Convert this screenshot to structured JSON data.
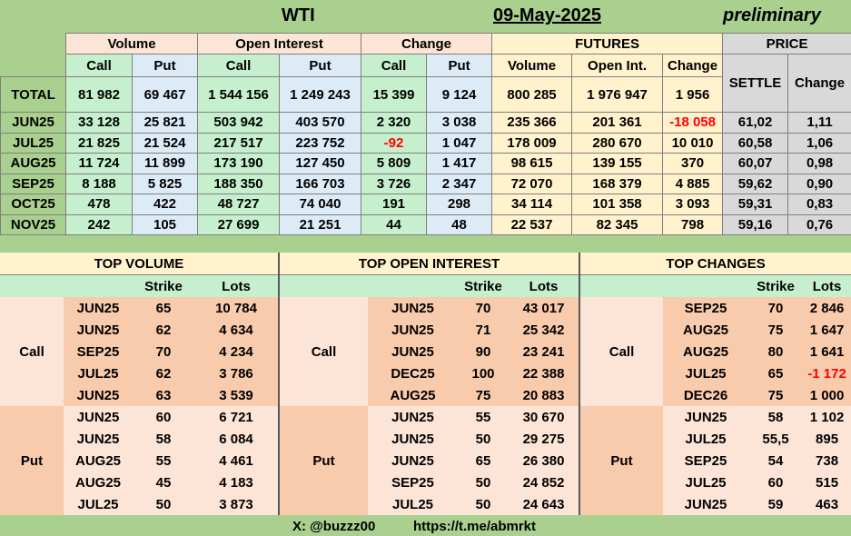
{
  "title": "WTI",
  "date": "09-May-2025",
  "status": "preliminary",
  "groups": {
    "volume": "Volume",
    "open_interest": "Open Interest",
    "change": "Change",
    "futures": "FUTURES",
    "price": "PRICE"
  },
  "subheaders": {
    "call": "Call",
    "put": "Put",
    "fut_volume": "Volume",
    "fut_open_int": "Open Int.",
    "fut_change": "Change",
    "settle": "SETTLE",
    "price_change": "Change"
  },
  "total": {
    "label": "TOTAL",
    "values": [
      "81 982",
      "69 467",
      "1 544 156",
      "1 249 243",
      "15 399",
      "9 124",
      "800 285",
      "1 976 947",
      "1 956"
    ]
  },
  "rows": [
    {
      "month": "JUN25",
      "values": [
        "33 128",
        "25 821",
        "503 942",
        "403 570",
        "2 320",
        "3 038",
        "235 366",
        "201 361",
        "-18 058",
        "61,02",
        "1,11"
      ]
    },
    {
      "month": "JUL25",
      "values": [
        "21 825",
        "21 524",
        "217 517",
        "223 752",
        "-92",
        "1 047",
        "178 009",
        "280 670",
        "10 010",
        "60,58",
        "1,06"
      ]
    },
    {
      "month": "AUG25",
      "values": [
        "11 724",
        "11 899",
        "173 190",
        "127 450",
        "5 809",
        "1 417",
        "98 615",
        "139 155",
        "370",
        "60,07",
        "0,98"
      ]
    },
    {
      "month": "SEP25",
      "values": [
        "8 188",
        "5 825",
        "188 350",
        "166 703",
        "3 726",
        "2 347",
        "72 070",
        "168 379",
        "4 885",
        "59,62",
        "0,90"
      ]
    },
    {
      "month": "OCT25",
      "values": [
        "478",
        "422",
        "48 727",
        "74 040",
        "191",
        "298",
        "34 114",
        "101 358",
        "3 093",
        "59,31",
        "0,83"
      ]
    },
    {
      "month": "NOV25",
      "values": [
        "242",
        "105",
        "27 699",
        "21 251",
        "44",
        "48",
        "22 537",
        "82 345",
        "798",
        "59,16",
        "0,76"
      ]
    }
  ],
  "bottom": {
    "sections": [
      "TOP VOLUME",
      "TOP OPEN INTEREST",
      "TOP CHANGES"
    ],
    "strike_label": "Strike",
    "lots_label": "Lots",
    "call_label": "Call",
    "put_label": "Put",
    "rows": [
      [
        [
          "JUN25",
          "65",
          "10 784"
        ],
        [
          "JUN25",
          "70",
          "43 017"
        ],
        [
          "SEP25",
          "70",
          "2 846"
        ]
      ],
      [
        [
          "JUN25",
          "62",
          "4 634"
        ],
        [
          "JUN25",
          "71",
          "25 342"
        ],
        [
          "AUG25",
          "75",
          "1 647"
        ]
      ],
      [
        [
          "SEP25",
          "70",
          "4 234"
        ],
        [
          "JUN25",
          "90",
          "23 241"
        ],
        [
          "AUG25",
          "80",
          "1 641"
        ]
      ],
      [
        [
          "JUL25",
          "62",
          "3 786"
        ],
        [
          "DEC25",
          "100",
          "22 388"
        ],
        [
          "JUL25",
          "65",
          "-1 172"
        ]
      ],
      [
        [
          "JUN25",
          "63",
          "3 539"
        ],
        [
          "AUG25",
          "75",
          "20 883"
        ],
        [
          "DEC26",
          "75",
          "1 000"
        ]
      ],
      [
        [
          "JUN25",
          "60",
          "6 721"
        ],
        [
          "JUN25",
          "55",
          "30 670"
        ],
        [
          "JUN25",
          "58",
          "1 102"
        ]
      ],
      [
        [
          "JUN25",
          "58",
          "6 084"
        ],
        [
          "JUN25",
          "50",
          "29 275"
        ],
        [
          "JUL25",
          "55,5",
          "895"
        ]
      ],
      [
        [
          "AUG25",
          "55",
          "4 461"
        ],
        [
          "JUN25",
          "65",
          "26 380"
        ],
        [
          "SEP25",
          "54",
          "738"
        ]
      ],
      [
        [
          "AUG25",
          "45",
          "4 183"
        ],
        [
          "SEP25",
          "50",
          "24 852"
        ],
        [
          "JUL25",
          "60",
          "515"
        ]
      ],
      [
        [
          "JUL25",
          "50",
          "3 873"
        ],
        [
          "JUL25",
          "50",
          "24 643"
        ],
        [
          "JUN25",
          "59",
          "463"
        ]
      ]
    ]
  },
  "footer": {
    "x_handle": "X: @buzzz00",
    "link": "https://t.me/abmrkt"
  },
  "colors": {
    "background": "#a9d08e",
    "negative": "#ff0000"
  }
}
